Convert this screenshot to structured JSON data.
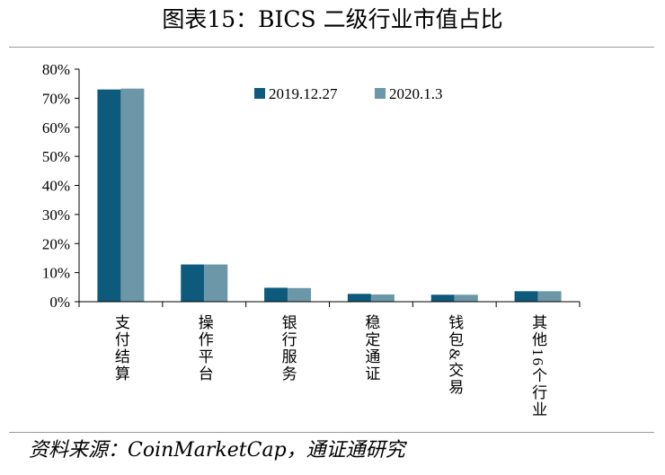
{
  "title": "图表15：BICS 二级行业市值占比",
  "source": "资料来源：CoinMarketCap，通证通研究",
  "colors": {
    "series1": "#0e5a7c",
    "series2": "#6b97a8",
    "axis": "#000000",
    "rule": "#9a9a9a"
  },
  "chart_data": {
    "type": "bar",
    "categories": [
      "支付结算",
      "操作平台",
      "银行服务",
      "稳定通证",
      "钱包&交易",
      "其他16个行业"
    ],
    "series": [
      {
        "name": "2019.12.27",
        "values": [
          73.0,
          12.8,
          4.8,
          2.7,
          2.4,
          3.6
        ]
      },
      {
        "name": "2020.1.3",
        "values": [
          73.3,
          12.8,
          4.7,
          2.5,
          2.4,
          3.6
        ]
      }
    ],
    "ylim": [
      0,
      80
    ],
    "yticks": [
      "0%",
      "10%",
      "20%",
      "30%",
      "40%",
      "50%",
      "60%",
      "70%",
      "80%"
    ],
    "ylabel": "",
    "xlabel": "",
    "legend": "top-center",
    "grid": false
  }
}
